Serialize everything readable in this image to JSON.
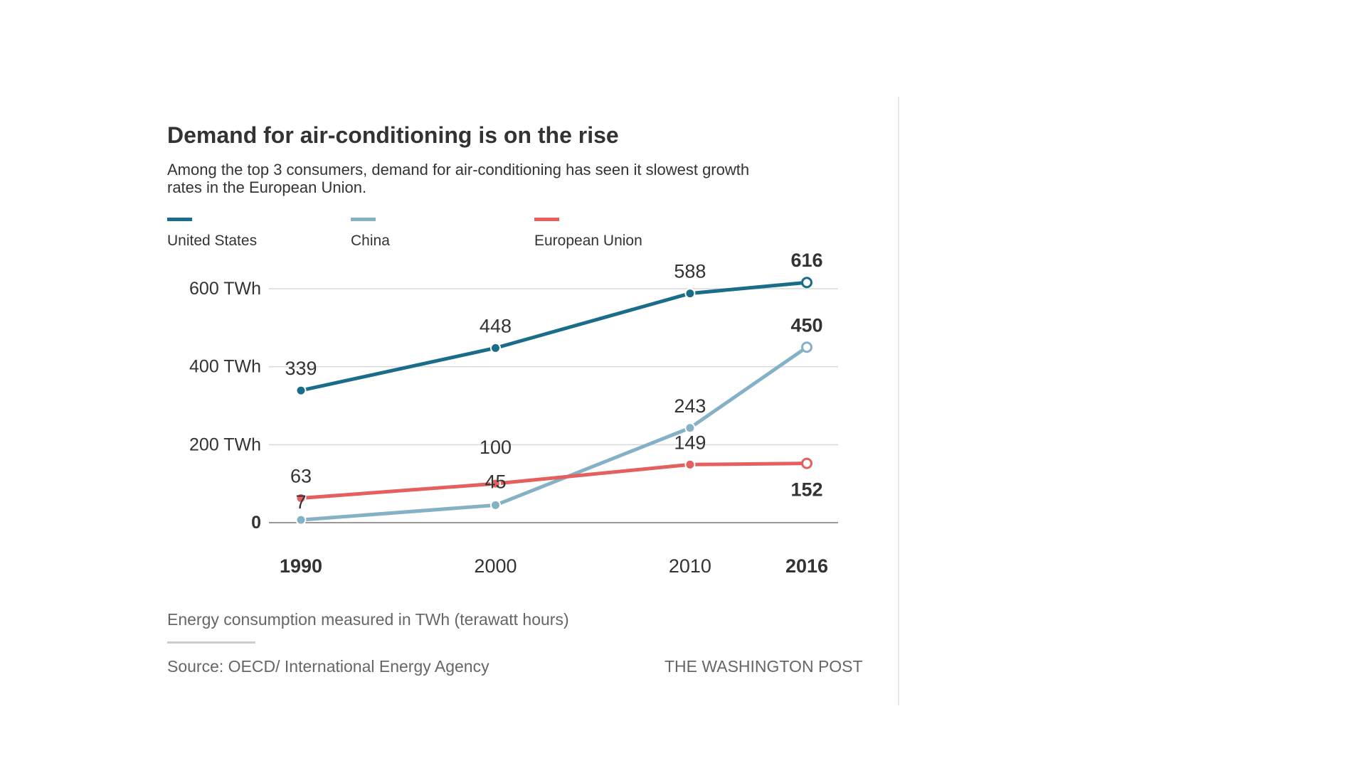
{
  "title": "Demand for air-conditioning is on the rise",
  "subtitle": "Among the top 3 consumers, demand for air-conditioning has seen it slowest growth rates in the European Union.",
  "note": "Energy consumption measured in TWh (terawatt hours)",
  "source": "Source: OECD/ International Energy Agency",
  "credit": "THE WASHINGTON POST",
  "colors": {
    "united_states": "#1a6d89",
    "china": "#85b1c6",
    "european_union": "#e3605f",
    "text": "#333333",
    "grid": "#d9d9d9",
    "axis": "#999999"
  },
  "chart_data": {
    "type": "line",
    "title": "Demand for air-conditioning is on the rise",
    "xlabel": "",
    "ylabel": "",
    "x": [
      1990,
      2000,
      2010,
      2016
    ],
    "x_tick_labels": [
      "1990",
      "2000",
      "2010",
      "2016"
    ],
    "bold_x_ticks": [
      "1990",
      "2016"
    ],
    "y_ticks": [
      0,
      200,
      400,
      600
    ],
    "y_tick_labels": [
      "0",
      "200 TWh",
      "400 TWh",
      "600 TWh"
    ],
    "ylim": [
      0,
      616
    ],
    "grid": true,
    "legend_position": "top-left",
    "series": [
      {
        "name": "United States",
        "color": "#1a6d89",
        "values": [
          339,
          448,
          588,
          616
        ],
        "labels": [
          "339",
          "448",
          "588",
          "616"
        ]
      },
      {
        "name": "China",
        "color": "#85b1c6",
        "values": [
          7,
          45,
          243,
          450
        ],
        "labels": [
          "7",
          "45",
          "243",
          "450"
        ]
      },
      {
        "name": "European Union",
        "color": "#e3605f",
        "values": [
          63,
          100,
          149,
          152
        ],
        "labels": [
          "63",
          "100",
          "149",
          "152"
        ]
      }
    ]
  }
}
